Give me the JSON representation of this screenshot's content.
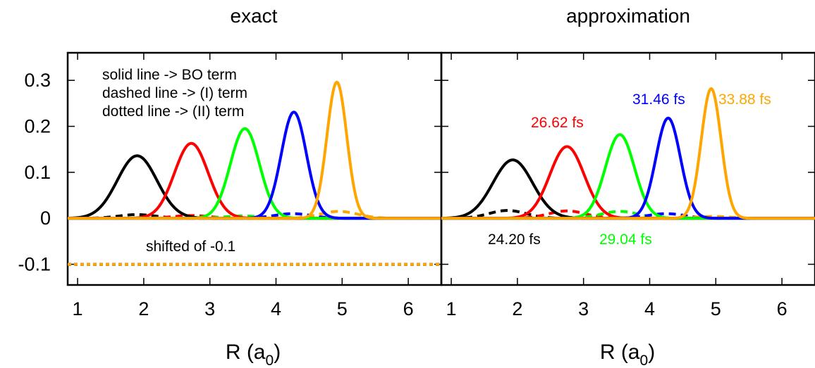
{
  "chart_data": [
    {
      "type": "line",
      "title": "exact",
      "xlabel": "R (a0)",
      "xlabel_main": "R (a",
      "xlabel_sub": "0",
      "xlabel_close": ")",
      "ylabel": "",
      "xlim": [
        0.85,
        6.5
      ],
      "ylim": [
        -0.145,
        0.36
      ],
      "xticks": [
        "1",
        "2",
        "3",
        "4",
        "5",
        "6"
      ],
      "yticks": [
        {
          "value": 0.3,
          "label": "0.3"
        },
        {
          "value": 0.2,
          "label": "0.2"
        },
        {
          "value": 0.1,
          "label": "0.1"
        },
        {
          "value": 0.0,
          "label": "0"
        },
        {
          "value": -0.1,
          "label": "-0.1"
        }
      ],
      "grid": false,
      "legend_notes": [
        "solid line -> BO term",
        "dashed line -> (I) term",
        "dotted line -> (II) term"
      ],
      "annotation": "shifted of -0.1",
      "series": [
        {
          "color": "#000000",
          "bo": {
            "center": 1.9,
            "amplitude": 0.136,
            "width": 0.3
          },
          "term1": {
            "center": 1.9,
            "amplitude": 0.008
          },
          "term2_offset": -0.1
        },
        {
          "color": "#ff0000",
          "bo": {
            "center": 2.72,
            "amplitude": 0.163,
            "width": 0.255
          },
          "term1": {
            "center": 2.72,
            "amplitude": 0.006
          },
          "term2_offset": -0.1
        },
        {
          "color": "#00ff00",
          "bo": {
            "center": 3.53,
            "amplitude": 0.195,
            "width": 0.22
          },
          "term1": {
            "center": 3.5,
            "amplitude": 0.005
          },
          "term2_offset": -0.1
        },
        {
          "color": "#0000ff",
          "bo": {
            "center": 4.27,
            "amplitude": 0.231,
            "width": 0.19
          },
          "term1": {
            "center": 4.25,
            "amplitude": 0.01
          },
          "term2_offset": -0.1
        },
        {
          "color": "#ffa500",
          "bo": {
            "center": 4.92,
            "amplitude": 0.296,
            "width": 0.15
          },
          "term1": {
            "center": 4.95,
            "amplitude": 0.015
          },
          "term2_offset": -0.1
        }
      ]
    },
    {
      "type": "line",
      "title": "approximation",
      "xlabel": "R (a0)",
      "xlabel_main": "R (a",
      "xlabel_sub": "0",
      "xlabel_close": ")",
      "ylabel": "",
      "xlim": [
        0.85,
        6.5
      ],
      "ylim": [
        -0.145,
        0.36
      ],
      "xticks": [
        "1",
        "2",
        "3",
        "4",
        "5",
        "6"
      ],
      "grid": false,
      "series": [
        {
          "name": "24.20 fs",
          "color": "#000000",
          "bo": {
            "center": 1.93,
            "amplitude": 0.127,
            "width": 0.3
          },
          "term1": {
            "center": 1.85,
            "amplitude": 0.017
          }
        },
        {
          "name": "26.62 fs",
          "color": "#ff0000",
          "bo": {
            "center": 2.75,
            "amplitude": 0.156,
            "width": 0.26
          },
          "term1": {
            "center": 2.75,
            "amplitude": 0.016
          }
        },
        {
          "name": "29.04 fs",
          "color": "#00ff00",
          "bo": {
            "center": 3.55,
            "amplitude": 0.182,
            "width": 0.22
          },
          "term1": {
            "center": 3.55,
            "amplitude": 0.015
          }
        },
        {
          "name": "31.46 fs",
          "color": "#0000ff",
          "bo": {
            "center": 4.28,
            "amplitude": 0.218,
            "width": 0.185
          },
          "term1": {
            "center": 4.25,
            "amplitude": 0.01
          }
        },
        {
          "name": "33.88 fs",
          "color": "#ffa500",
          "bo": {
            "center": 4.93,
            "amplitude": 0.282,
            "width": 0.15
          },
          "term1": {
            "center": 4.95,
            "amplitude": 0.004
          }
        }
      ]
    }
  ]
}
